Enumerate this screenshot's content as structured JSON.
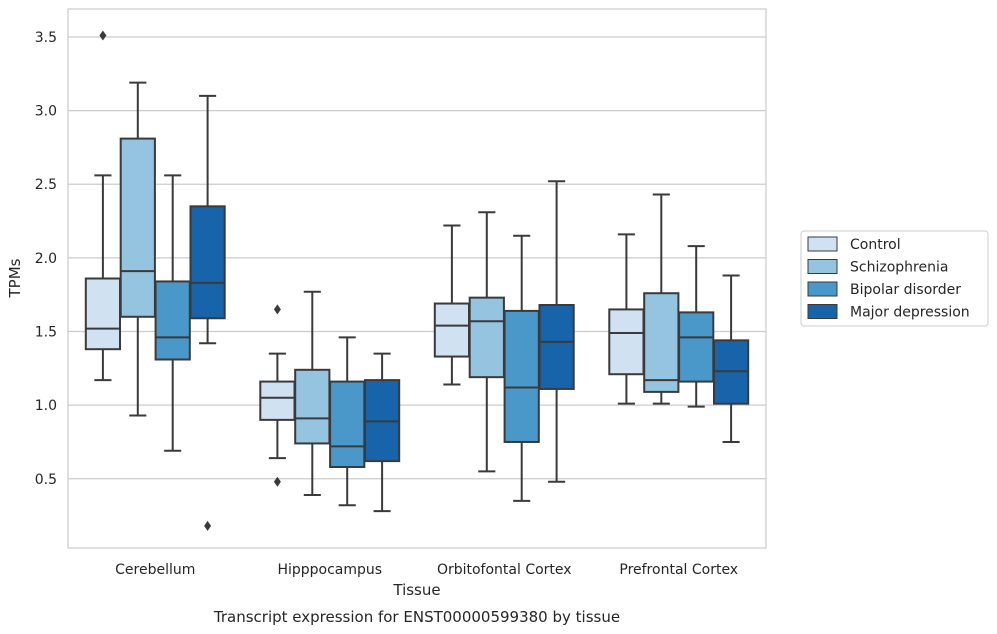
{
  "chart_data": {
    "type": "box",
    "xlabel": "Tissue",
    "ylabel": "TPMs",
    "caption": "Transcript expression for ENST00000599380 by tissue",
    "ylim": [
      0.03,
      3.69
    ],
    "yticks": [
      0.5,
      1.0,
      1.5,
      2.0,
      2.5,
      3.0,
      3.5
    ],
    "grid": true,
    "legend_position": "right",
    "categories": [
      "Cerebellum",
      "Hipppocampus",
      "Orbitofontal Cortex",
      "Prefrontal Cortex"
    ],
    "series": [
      {
        "name": "Control",
        "color": "#d0e1f2",
        "boxes": [
          {
            "whislo": 1.17,
            "q1": 1.38,
            "med": 1.52,
            "q3": 1.86,
            "whishi": 2.56,
            "fliers": [
              3.51
            ]
          },
          {
            "whislo": 0.64,
            "q1": 0.9,
            "med": 1.05,
            "q3": 1.16,
            "whishi": 1.35,
            "fliers": [
              1.65,
              0.48
            ]
          },
          {
            "whislo": 1.14,
            "q1": 1.33,
            "med": 1.54,
            "q3": 1.69,
            "whishi": 2.22,
            "fliers": []
          },
          {
            "whislo": 1.01,
            "q1": 1.21,
            "med": 1.49,
            "q3": 1.65,
            "whishi": 2.16,
            "fliers": []
          }
        ]
      },
      {
        "name": "Schizophrenia",
        "color": "#94c4df",
        "boxes": [
          {
            "whislo": 0.93,
            "q1": 1.6,
            "med": 1.91,
            "q3": 2.81,
            "whishi": 3.19,
            "fliers": []
          },
          {
            "whislo": 0.39,
            "q1": 0.74,
            "med": 0.91,
            "q3": 1.24,
            "whishi": 1.77,
            "fliers": []
          },
          {
            "whislo": 0.55,
            "q1": 1.19,
            "med": 1.57,
            "q3": 1.73,
            "whishi": 2.31,
            "fliers": []
          },
          {
            "whislo": 1.01,
            "q1": 1.09,
            "med": 1.17,
            "q3": 1.76,
            "whishi": 2.43,
            "fliers": []
          }
        ]
      },
      {
        "name": "Bipolar disorder",
        "color": "#4a98c9",
        "boxes": [
          {
            "whislo": 0.69,
            "q1": 1.31,
            "med": 1.46,
            "q3": 1.84,
            "whishi": 2.56,
            "fliers": []
          },
          {
            "whislo": 0.32,
            "q1": 0.58,
            "med": 0.72,
            "q3": 1.16,
            "whishi": 1.46,
            "fliers": []
          },
          {
            "whislo": 0.35,
            "q1": 0.75,
            "med": 1.12,
            "q3": 1.64,
            "whishi": 2.15,
            "fliers": []
          },
          {
            "whislo": 0.99,
            "q1": 1.16,
            "med": 1.46,
            "q3": 1.63,
            "whishi": 2.08,
            "fliers": []
          }
        ]
      },
      {
        "name": "Major depression",
        "color": "#1764ab",
        "boxes": [
          {
            "whislo": 1.42,
            "q1": 1.59,
            "med": 1.83,
            "q3": 2.35,
            "whishi": 3.1,
            "fliers": [
              0.18
            ]
          },
          {
            "whislo": 0.28,
            "q1": 0.62,
            "med": 0.89,
            "q3": 1.17,
            "whishi": 1.35,
            "fliers": []
          },
          {
            "whislo": 0.48,
            "q1": 1.11,
            "med": 1.43,
            "q3": 1.68,
            "whishi": 2.52,
            "fliers": []
          },
          {
            "whislo": 0.75,
            "q1": 1.01,
            "med": 1.23,
            "q3": 1.44,
            "whishi": 1.88,
            "fliers": []
          }
        ]
      }
    ]
  }
}
